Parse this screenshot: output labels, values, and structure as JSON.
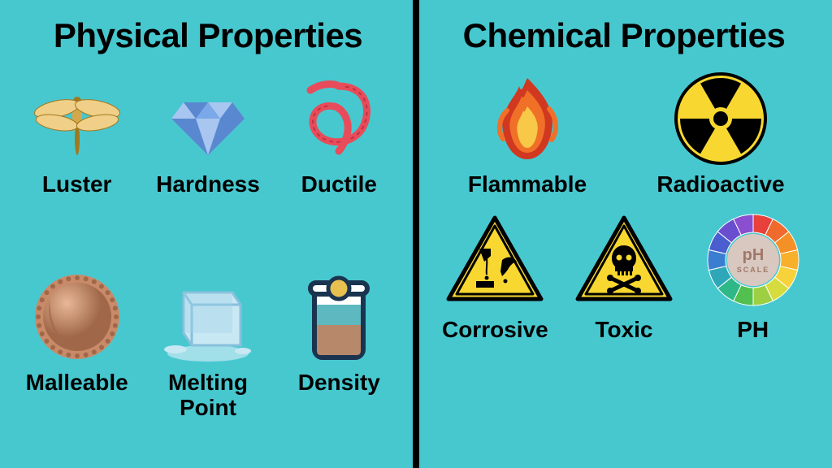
{
  "colors": {
    "background": "#47c8cf",
    "text": "#000000",
    "divider": "#000000",
    "diamond_main": "#7aa8e8",
    "diamond_light": "#a8c6f0",
    "diamond_dark": "#5a88d0",
    "rope": "#e84c5a",
    "rope_dark": "#c03040",
    "gold": "#d4a84a",
    "gold_light": "#f0d088",
    "gold_dark": "#a07820",
    "copper": "#c98a6a",
    "copper_light": "#e8b898",
    "copper_dark": "#a06848",
    "ice": "#c8e8f4",
    "ice_outline": "#88c0dc",
    "ice_dark": "#a0d0e8",
    "beaker_outline": "#1a3450",
    "beaker_liquid": "#5eb8c0",
    "beaker_powder": "#b8886a",
    "beaker_ball": "#e8c050",
    "flame_orange": "#f07028",
    "flame_yellow": "#f8c848",
    "flame_red": "#d03820",
    "hazard_yellow": "#f8d830",
    "hazard_black": "#000000",
    "ph_center": "#d8c8c0",
    "ph_text": "#a07868"
  },
  "left": {
    "title": "Physical Properties",
    "items": [
      {
        "label": "Luster",
        "icon": "dragonfly"
      },
      {
        "label": "Hardness",
        "icon": "diamond"
      },
      {
        "label": "Ductile",
        "icon": "rope"
      },
      {
        "label": "Malleable",
        "icon": "medal"
      },
      {
        "label": "Melting Point",
        "icon": "ice"
      },
      {
        "label": "Density",
        "icon": "beaker"
      }
    ]
  },
  "right": {
    "title": "Chemical Properties",
    "row1": [
      {
        "label": "Flammable",
        "icon": "flame"
      },
      {
        "label": "Radioactive",
        "icon": "radioactive"
      }
    ],
    "row2": [
      {
        "label": "Corrosive",
        "icon": "corrosive"
      },
      {
        "label": "Toxic",
        "icon": "toxic"
      },
      {
        "label": "PH",
        "icon": "ph"
      }
    ]
  },
  "ph": {
    "center_label_top": "pH",
    "center_label_bottom": "SCALE",
    "segments": [
      "#e8403a",
      "#ef6a2c",
      "#f59026",
      "#f8b02a",
      "#f8d23a",
      "#d6dc3e",
      "#9cd042",
      "#52c04e",
      "#2eb888",
      "#2ea8b8",
      "#3a7ed0",
      "#4a5ed0",
      "#6a4ed0",
      "#8a4ed0"
    ]
  }
}
